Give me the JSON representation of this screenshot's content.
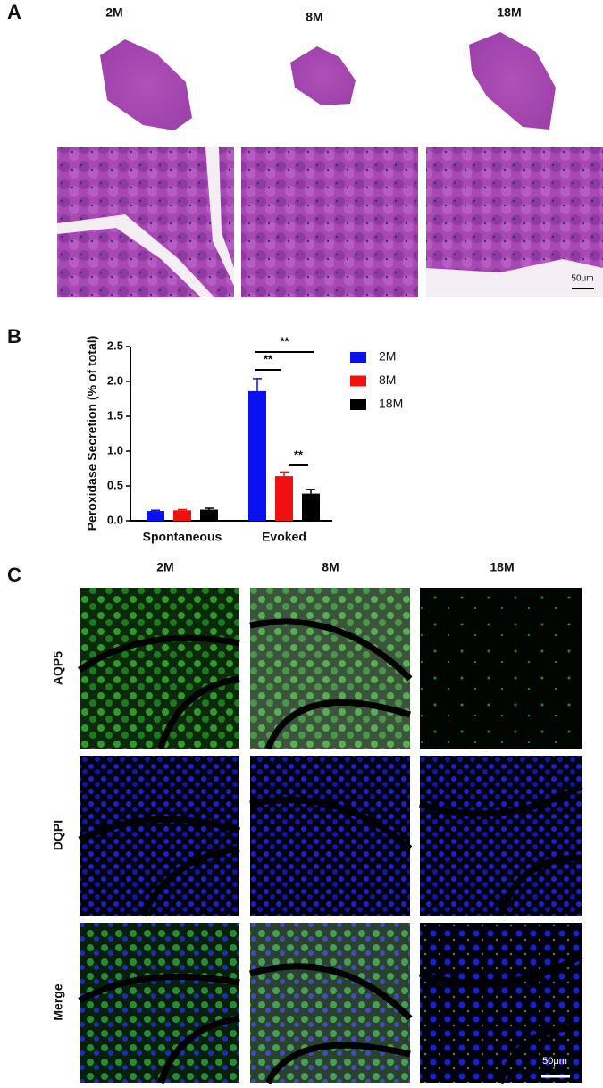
{
  "panels": {
    "a": {
      "label": "A",
      "columns": [
        "2M",
        "8M",
        "18M"
      ],
      "scale_bar": "50μm"
    },
    "c": {
      "label": "C",
      "columns": [
        "2M",
        "8M",
        "18M"
      ],
      "rows": [
        "AQP5",
        "DQPI",
        "Merge"
      ],
      "scale_bar": "50μm"
    }
  },
  "chart_data": {
    "type": "bar",
    "panel_label": "B",
    "y_label": "Peroxidase Secretion (% of total)",
    "categories": [
      "Spontaneous",
      "Evoked"
    ],
    "series": [
      {
        "name": "2M",
        "color": "#0a10f0",
        "values": [
          0.14,
          1.86
        ],
        "errors": [
          0.01,
          0.18
        ]
      },
      {
        "name": "8M",
        "color": "#f01010",
        "values": [
          0.15,
          0.64
        ],
        "errors": [
          0.01,
          0.06
        ]
      },
      {
        "name": "18M",
        "color": "#000000",
        "values": [
          0.16,
          0.39
        ],
        "errors": [
          0.02,
          0.06
        ]
      }
    ],
    "ylim": [
      0,
      2.5
    ],
    "yticks": [
      {
        "value": 0,
        "label": "0.0"
      },
      0.5,
      {
        "value": 1,
        "label": "1.0"
      },
      1.5,
      {
        "value": 2,
        "label": "2.0"
      },
      2.5
    ],
    "annotations": [
      "**",
      "**",
      "**"
    ],
    "legend": "right"
  }
}
